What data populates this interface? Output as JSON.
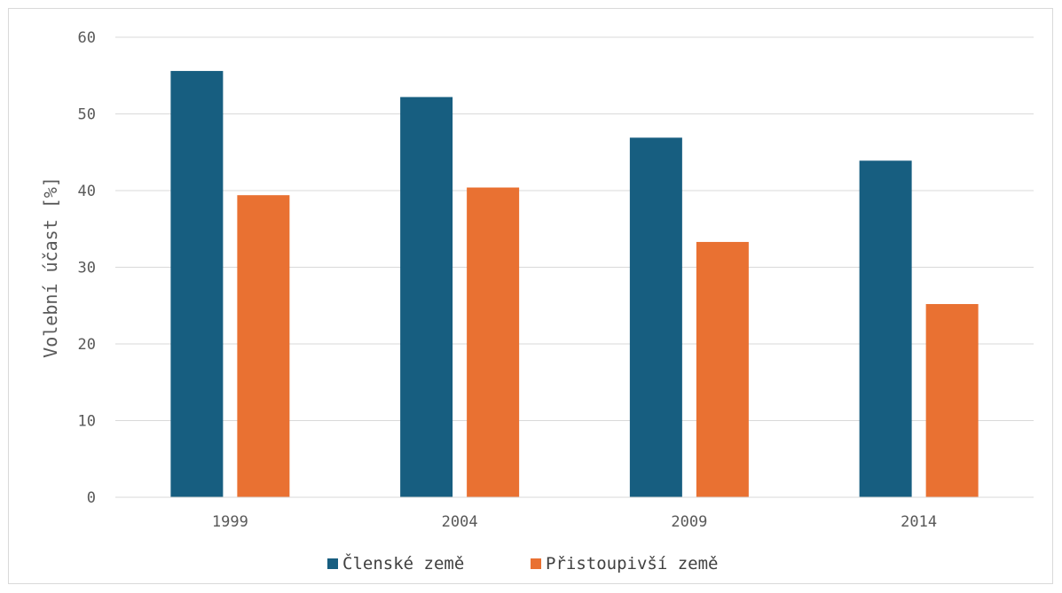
{
  "chart_data": {
    "type": "bar",
    "ylabel": "Volební účast [%]",
    "xlabel": "",
    "ylim": [
      0,
      60
    ],
    "yticks": [
      0,
      10,
      20,
      30,
      40,
      50,
      60
    ],
    "grid": true,
    "legend_position": "bottom",
    "categories": [
      "1999",
      "2004",
      "2009",
      "2014"
    ],
    "series": [
      {
        "name": "Členské země",
        "color": "#175e80",
        "values": [
          55.6,
          52.2,
          46.9,
          43.9
        ]
      },
      {
        "name": "Přistoupivší země",
        "color": "#e97132",
        "values": [
          39.4,
          40.4,
          33.3,
          25.2
        ]
      }
    ]
  }
}
